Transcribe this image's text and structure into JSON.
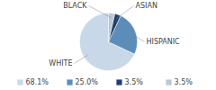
{
  "chart_data": {
    "type": "pie",
    "categories": [
      "WHITE",
      "HISPANIC",
      "ASIAN",
      "BLACK"
    ],
    "values": [
      68.1,
      25.0,
      3.5,
      3.5
    ],
    "value_labels": [
      "68.1%",
      "25.0%",
      "3.5%",
      "3.5%"
    ],
    "colors": [
      "#c8d8e8",
      "#5b8db8",
      "#1e3f6e",
      "#b8c8d4"
    ],
    "legend": "bottom"
  }
}
